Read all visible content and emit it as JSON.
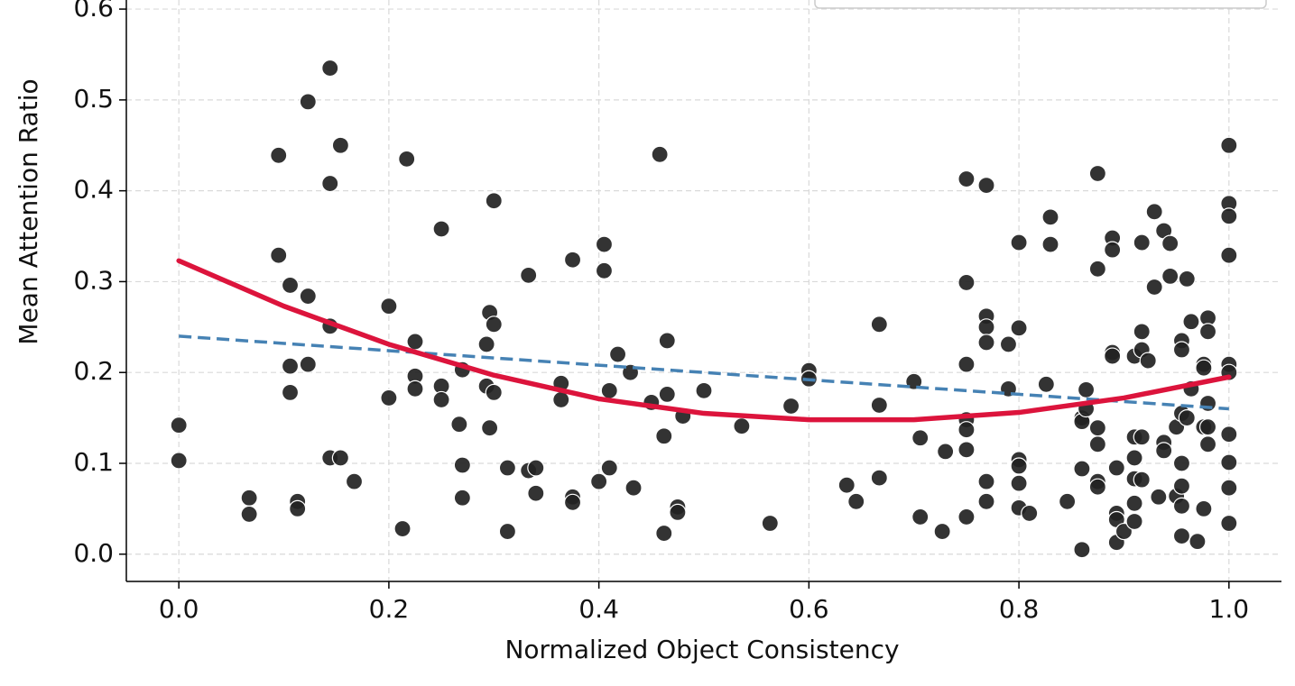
{
  "chart_data": {
    "type": "scatter",
    "xlabel": "Normalized Object Consistency",
    "ylabel": "Mean Attention Ratio",
    "xlim": [
      -0.05,
      1.05
    ],
    "ylim": [
      -0.03,
      0.61
    ],
    "xticks": [
      {
        "value": 0,
        "label": "0.0"
      },
      0.2,
      0.4,
      0.6,
      0.8,
      {
        "value": 1,
        "label": "1.0"
      }
    ],
    "yticks": [
      {
        "value": 0,
        "label": "0.0"
      },
      0.1,
      0.2,
      0.3,
      0.4,
      0.5,
      0.6
    ],
    "grid": true,
    "series": [
      {
        "type": "scatter",
        "color": "#222222",
        "x": [
          0,
          0,
          0.067,
          0.067,
          0.095,
          0.095,
          0.106,
          0.106,
          0.106,
          0.113,
          0.113,
          0.123,
          0.123,
          0.123,
          0.144,
          0.144,
          0.144,
          0.144,
          0.154,
          0.154,
          0.167,
          0.2,
          0.2,
          0.213,
          0.217,
          0.225,
          0.225,
          0.225,
          0.25,
          0.25,
          0.25,
          0.267,
          0.27,
          0.27,
          0.27,
          0.293,
          0.293,
          0.296,
          0.296,
          0.3,
          0.3,
          0.3,
          0.313,
          0.313,
          0.333,
          0.333,
          0.34,
          0.34,
          0.364,
          0.364,
          0.375,
          0.375,
          0.375,
          0.4,
          0.405,
          0.405,
          0.41,
          0.41,
          0.418,
          0.43,
          0.433,
          0.45,
          0.458,
          0.462,
          0.462,
          0.465,
          0.465,
          0.475,
          0.475,
          0.48,
          0.5,
          0.536,
          0.563,
          0.583,
          0.6,
          0.6,
          0.636,
          0.645,
          0.667,
          0.667,
          0.667,
          0.7,
          0.706,
          0.706,
          0.727,
          0.73,
          0.75,
          0.75,
          0.75,
          0.75,
          0.75,
          0.75,
          0.75,
          0.769,
          0.769,
          0.769,
          0.769,
          0.769,
          0.769,
          0.79,
          0.79,
          0.8,
          0.8,
          0.8,
          0.8,
          0.8,
          0.8,
          0.81,
          0.826,
          0.83,
          0.83,
          0.846,
          0.86,
          0.86,
          0.86,
          0.86,
          0.864,
          0.864,
          0.875,
          0.875,
          0.875,
          0.875,
          0.875,
          0.875,
          0.889,
          0.889,
          0.889,
          0.889,
          0.893,
          0.893,
          0.893,
          0.893,
          0.9,
          0.91,
          0.91,
          0.91,
          0.91,
          0.91,
          0.91,
          0.917,
          0.917,
          0.917,
          0.917,
          0.917,
          0.923,
          0.929,
          0.929,
          0.933,
          0.938,
          0.938,
          0.938,
          0.944,
          0.944,
          0.95,
          0.95,
          0.955,
          0.955,
          0.955,
          0.955,
          0.955,
          0.955,
          0.955,
          0.96,
          0.96,
          0.964,
          0.964,
          0.97,
          0.976,
          0.976,
          0.976,
          0.976,
          0.98,
          0.98,
          0.98,
          0.98,
          0.98,
          1,
          1,
          1,
          1,
          1,
          1,
          1,
          1,
          1,
          1
        ],
        "values": [
          0.142,
          0.103,
          0.062,
          0.044,
          0.439,
          0.329,
          0.296,
          0.207,
          0.178,
          0.058,
          0.05,
          0.498,
          0.284,
          0.209,
          0.535,
          0.408,
          0.251,
          0.106,
          0.45,
          0.106,
          0.08,
          0.273,
          0.172,
          0.028,
          0.435,
          0.234,
          0.196,
          0.182,
          0.358,
          0.185,
          0.17,
          0.143,
          0.203,
          0.098,
          0.062,
          0.231,
          0.185,
          0.266,
          0.139,
          0.389,
          0.253,
          0.178,
          0.025,
          0.095,
          0.307,
          0.092,
          0.095,
          0.067,
          0.188,
          0.17,
          0.324,
          0.063,
          0.057,
          0.08,
          0.341,
          0.312,
          0.18,
          0.095,
          0.22,
          0.2,
          0.073,
          0.167,
          0.44,
          0.13,
          0.023,
          0.235,
          0.176,
          0.052,
          0.046,
          0.152,
          0.18,
          0.141,
          0.034,
          0.163,
          0.202,
          0.193,
          0.076,
          0.058,
          0.253,
          0.164,
          0.084,
          0.19,
          0.128,
          0.041,
          0.025,
          0.113,
          0.413,
          0.299,
          0.209,
          0.148,
          0.137,
          0.115,
          0.041,
          0.406,
          0.262,
          0.25,
          0.233,
          0.08,
          0.058,
          0.231,
          0.182,
          0.343,
          0.249,
          0.104,
          0.097,
          0.078,
          0.051,
          0.045,
          0.187,
          0.371,
          0.341,
          0.058,
          0.15,
          0.146,
          0.094,
          0.005,
          0.181,
          0.16,
          0.419,
          0.314,
          0.139,
          0.121,
          0.08,
          0.074,
          0.348,
          0.335,
          0.222,
          0.218,
          0.095,
          0.045,
          0.038,
          0.013,
          0.025,
          0.129,
          0.106,
          0.083,
          0.056,
          0.036,
          0.218,
          0.343,
          0.245,
          0.225,
          0.129,
          0.082,
          0.213,
          0.377,
          0.294,
          0.063,
          0.356,
          0.123,
          0.114,
          0.342,
          0.306,
          0.14,
          0.064,
          0.235,
          0.225,
          0.155,
          0.1,
          0.075,
          0.053,
          0.02,
          0.303,
          0.15,
          0.256,
          0.182,
          0.014,
          0.209,
          0.205,
          0.14,
          0.05,
          0.26,
          0.245,
          0.166,
          0.14,
          0.121,
          0.45,
          0.386,
          0.372,
          0.329,
          0.209,
          0.2,
          0.132,
          0.101,
          0.073,
          0.034
        ]
      },
      {
        "type": "line",
        "color": "#4682b4",
        "dashed": true,
        "x": [
          0,
          1
        ],
        "values": [
          0.24,
          0.16
        ]
      },
      {
        "type": "line",
        "color": "#dc143c",
        "dashed": false,
        "x": [
          0,
          0.1,
          0.2,
          0.3,
          0.4,
          0.5,
          0.6,
          0.7,
          0.8,
          0.9,
          1
        ],
        "values": [
          0.323,
          0.273,
          0.231,
          0.197,
          0.171,
          0.155,
          0.148,
          0.148,
          0.156,
          0.172,
          0.195
        ]
      }
    ]
  }
}
